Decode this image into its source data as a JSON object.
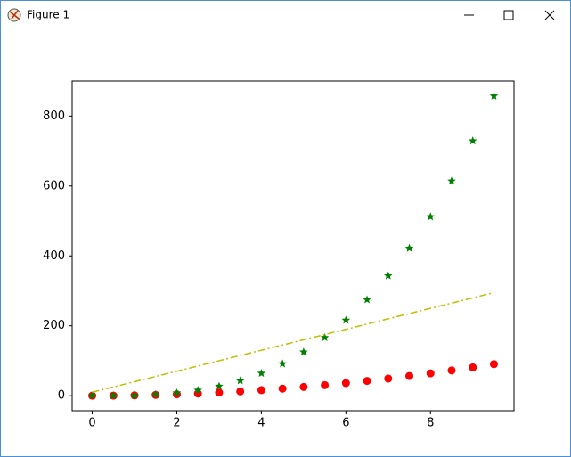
{
  "window": {
    "title": "Figure 1"
  },
  "chart_data": {
    "type": "scatter",
    "x": [
      0,
      0.5,
      1,
      1.5,
      2,
      2.5,
      3,
      3.5,
      4,
      4.5,
      5,
      5.5,
      6,
      6.5,
      7,
      7.5,
      8,
      8.5,
      9,
      9.5
    ],
    "series": [
      {
        "color": "#ff0000",
        "marker": "o",
        "values": [
          0,
          0.25,
          1,
          2.25,
          4,
          6.25,
          9,
          12.25,
          16,
          20.25,
          25,
          30.25,
          36,
          42.25,
          49,
          56.25,
          64,
          72.25,
          81,
          90.25
        ]
      },
      {
        "color": "#008000",
        "marker": "*",
        "values": [
          0,
          0.125,
          1,
          3.375,
          8,
          15.625,
          27,
          42.875,
          64,
          91.125,
          125,
          166.375,
          216,
          274.625,
          343,
          421.875,
          512,
          614.125,
          729,
          857.375
        ]
      },
      {
        "color": "#bfbf00",
        "linestyle": "-.",
        "values": [
          10,
          25,
          40,
          55,
          70,
          85,
          100,
          115,
          130,
          145,
          160,
          175,
          190,
          205,
          220,
          235,
          250,
          265,
          280,
          295
        ]
      }
    ],
    "xlim": [
      -0.475,
      9.975
    ],
    "xticks": [
      0,
      2,
      4,
      6,
      8
    ],
    "ylim": [
      -42.87,
      900.24
    ],
    "yticks": [
      0,
      200,
      400,
      600,
      800
    ],
    "grid": false
  }
}
